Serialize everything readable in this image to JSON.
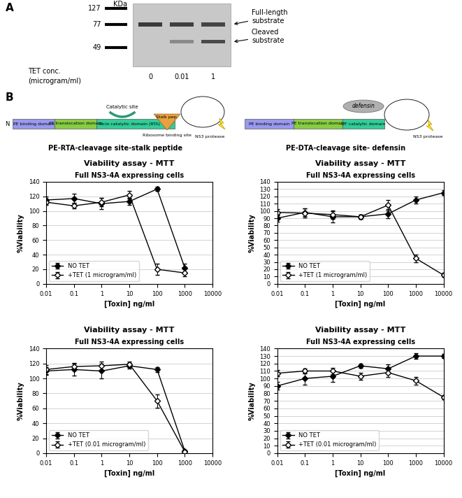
{
  "panel_a": {
    "label": "A",
    "unit_label": "KDa",
    "marker_sizes": [
      127,
      77,
      49
    ],
    "band_labels": [
      [
        "Full-length",
        "substrate"
      ],
      [
        "Cleaved",
        "substrate"
      ]
    ],
    "lane_title": [
      "TET conc.",
      "(microgram/ml)"
    ],
    "lanes": [
      0,
      0.01,
      1
    ]
  },
  "panel_b": {
    "label": "B",
    "constructs": [
      {
        "title": "PE-RTA-cleavage site-stalk peptide",
        "n_terminus": "N",
        "domains": [
          "PE binding domain",
          "PE translocation domain",
          "Ricin catalytic domain (RTA)"
        ],
        "catalytic_site": "Catalytic site",
        "stalk": "Stalk pep.",
        "ribosome_site": "Ribosome binding site",
        "protease": "NS3 protease"
      },
      {
        "title": "PE-DTA-cleavage site- defensin",
        "domains": [
          "PE binding domain",
          "PE translocation domain",
          "DT catalytic domain"
        ],
        "fusion": "defensin",
        "protease": "NS3 protease"
      }
    ]
  },
  "chart_data": [
    {
      "type": "line",
      "title": "Viability assay - MTT",
      "subtitle": "Full NS3-4A expressing cells",
      "x_label": "[Toxin] ng/ml",
      "y_label": "%Viability",
      "log": "x",
      "grid": true,
      "legend": "lower left",
      "x": [
        0.01,
        0.1,
        1,
        10,
        100,
        1000
      ],
      "xlim": [
        0.01,
        10000
      ],
      "xticks": [
        0.01,
        0.1,
        1,
        10,
        100,
        1000,
        10000
      ],
      "ylim": [
        0,
        140
      ],
      "yticks": [
        0,
        20,
        40,
        60,
        80,
        100,
        120,
        140
      ],
      "series": [
        {
          "name": "NO TET",
          "color": "#000000",
          "marker": "diamond",
          "line_style": "solid",
          "values": [
            115,
            117,
            110,
            113,
            130,
            22
          ],
          "errors": [
            5,
            7,
            8,
            5,
            3,
            6
          ]
        },
        {
          "name": "+TET (1 microgram/ml)",
          "color": "#000000",
          "marker": "open_diamond",
          "line_style": "solid",
          "values": [
            112,
            107,
            112,
            122,
            20,
            15
          ],
          "errors": [
            4,
            4,
            6,
            5,
            8,
            5
          ]
        }
      ]
    },
    {
      "type": "line",
      "title": "Viability assay - MTT",
      "subtitle": "Full NS3-4A expressing cells",
      "x_label": "[Toxin] ng/ml",
      "y_label": "%Viability",
      "log": "x",
      "grid": true,
      "legend": "lower left",
      "x": [
        0.01,
        0.1,
        1,
        10,
        100,
        1000,
        10000
      ],
      "xlim": [
        0.01,
        10000
      ],
      "xticks": [
        0.01,
        0.1,
        1,
        10,
        100,
        1000,
        10000
      ],
      "ylim": [
        0,
        140
      ],
      "yticks": [
        0,
        10,
        20,
        30,
        40,
        50,
        60,
        70,
        80,
        90,
        100,
        110,
        120,
        130,
        140
      ],
      "series": [
        {
          "name": "NO TET",
          "color": "#000000",
          "marker": "diamond",
          "line_style": "solid",
          "values": [
            90,
            98,
            92,
            92,
            96,
            115,
            125
          ],
          "errors": [
            5,
            5,
            8,
            3,
            6,
            5,
            3
          ]
        },
        {
          "name": "+TET (1 microgram/ml)",
          "color": "#000000",
          "marker": "open_diamond",
          "line_style": "solid",
          "values": [
            98,
            97,
            95,
            92,
            108,
            35,
            12
          ],
          "errors": [
            4,
            6,
            6,
            3,
            7,
            5,
            3
          ]
        }
      ]
    },
    {
      "type": "line",
      "title": "Viability assay - MTT",
      "subtitle": "Full NS3-4A expressing cells",
      "x_label": "[Toxin] ng/ml",
      "y_label": "%Viability",
      "log": "x",
      "grid": true,
      "legend": "lower left",
      "x": [
        0.01,
        0.1,
        1,
        10,
        100,
        1000
      ],
      "xlim": [
        0.01,
        10000
      ],
      "xticks": [
        0.01,
        0.1,
        1,
        10,
        100,
        1000,
        10000
      ],
      "ylim": [
        0,
        140
      ],
      "yticks": [
        0,
        20,
        40,
        60,
        80,
        100,
        120,
        140
      ],
      "series": [
        {
          "name": "NO TET",
          "color": "#000000",
          "marker": "diamond",
          "line_style": "solid",
          "values": [
            110,
            112,
            110,
            117,
            112,
            3
          ],
          "errors": [
            5,
            8,
            10,
            4,
            3,
            2
          ]
        },
        {
          "name": "+TET (0.01 microgram/ml)",
          "color": "#000000",
          "marker": "open_diamond",
          "line_style": "solid",
          "values": [
            112,
            116,
            117,
            119,
            70,
            2
          ],
          "errors": [
            6,
            5,
            6,
            4,
            9,
            2
          ]
        }
      ]
    },
    {
      "type": "line",
      "title": "Viability assay - MTT",
      "subtitle": "Full NS3-4A expressing cells",
      "x_label": "[Toxin] ng/ml",
      "y_label": "%Viability",
      "log": "x",
      "grid": true,
      "legend": "lower left",
      "x": [
        0.01,
        0.1,
        1,
        10,
        100,
        1000,
        10000
      ],
      "xlim": [
        0.01,
        10000
      ],
      "xticks": [
        0.01,
        0.1,
        1,
        10,
        100,
        1000,
        10000
      ],
      "ylim": [
        0,
        140
      ],
      "yticks": [
        0,
        10,
        20,
        30,
        40,
        50,
        60,
        70,
        80,
        90,
        100,
        110,
        120,
        130,
        140
      ],
      "series": [
        {
          "name": "NO TET",
          "color": "#000000",
          "marker": "diamond",
          "line_style": "solid",
          "values": [
            90,
            100,
            103,
            117,
            113,
            130,
            130
          ],
          "errors": [
            5,
            8,
            8,
            3,
            6,
            4,
            3
          ]
        },
        {
          "name": "+TET (0.01 microgram/ml)",
          "color": "#000000",
          "marker": "open_diamond",
          "line_style": "solid",
          "values": [
            107,
            110,
            110,
            103,
            108,
            97,
            75
          ],
          "errors": [
            4,
            3,
            4,
            5,
            6,
            5,
            3
          ]
        }
      ]
    }
  ]
}
